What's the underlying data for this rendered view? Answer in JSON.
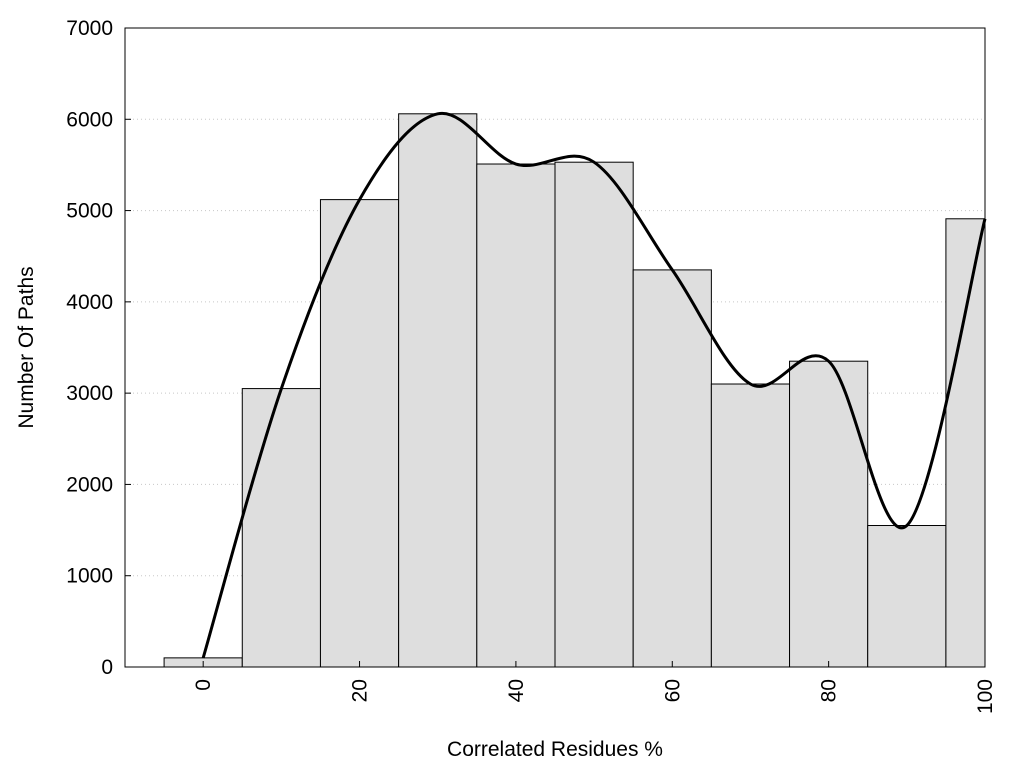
{
  "chart_data": {
    "type": "bar",
    "title": "",
    "xlabel": "Correlated Residues %",
    "ylabel": "Number Of Paths",
    "categories": [
      0,
      10,
      20,
      30,
      40,
      50,
      60,
      70,
      80,
      90,
      100
    ],
    "values": [
      100,
      3050,
      5120,
      6060,
      5510,
      5530,
      4350,
      3100,
      3350,
      1550,
      4910
    ],
    "xlim": [
      -10,
      100
    ],
    "ylim": [
      0,
      7000
    ],
    "xticks": [
      "0",
      "20",
      "40",
      "60",
      "80",
      "100"
    ],
    "xtick_values": [
      0,
      20,
      40,
      60,
      80,
      100
    ],
    "yticks": [
      "0",
      "1000",
      "2000",
      "3000",
      "4000",
      "5000",
      "6000",
      "7000"
    ],
    "ytick_values": [
      0,
      1000,
      2000,
      3000,
      4000,
      5000,
      6000,
      7000
    ],
    "xtick_rotation": "vertical",
    "grid": "horizontal dotted",
    "bar_color": "#dedede",
    "bar_edge_color": "#000000",
    "line_color": "#000000",
    "smooth_line": {
      "x": [
        0,
        10,
        20,
        30,
        40,
        50,
        60,
        70,
        80,
        90,
        100
      ],
      "y": [
        100,
        3050,
        5120,
        6060,
        5510,
        5530,
        4350,
        3100,
        3350,
        1550,
        4910
      ]
    }
  }
}
